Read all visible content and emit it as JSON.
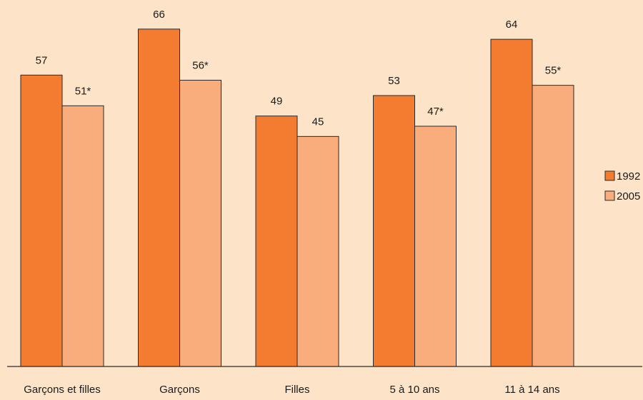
{
  "chart_data": {
    "type": "bar",
    "categories": [
      "Garçons et filles",
      "Garçons",
      "Filles",
      "5 à 10 ans",
      "11 à 14 ans"
    ],
    "series": [
      {
        "name": "1992",
        "color": "#f47c30",
        "values": [
          57,
          66,
          49,
          53,
          64
        ],
        "labels": [
          "57",
          "66",
          "49",
          "53",
          "64"
        ]
      },
      {
        "name": "2005",
        "color": "#f9ac7c",
        "values": [
          51,
          56,
          45,
          47,
          55
        ],
        "labels": [
          "51*",
          "56*",
          "45",
          "47*",
          "55*"
        ]
      }
    ],
    "ylim": [
      0,
      70
    ],
    "grid": false,
    "legend_position": "right",
    "title": "",
    "xlabel": "",
    "ylabel": ""
  }
}
